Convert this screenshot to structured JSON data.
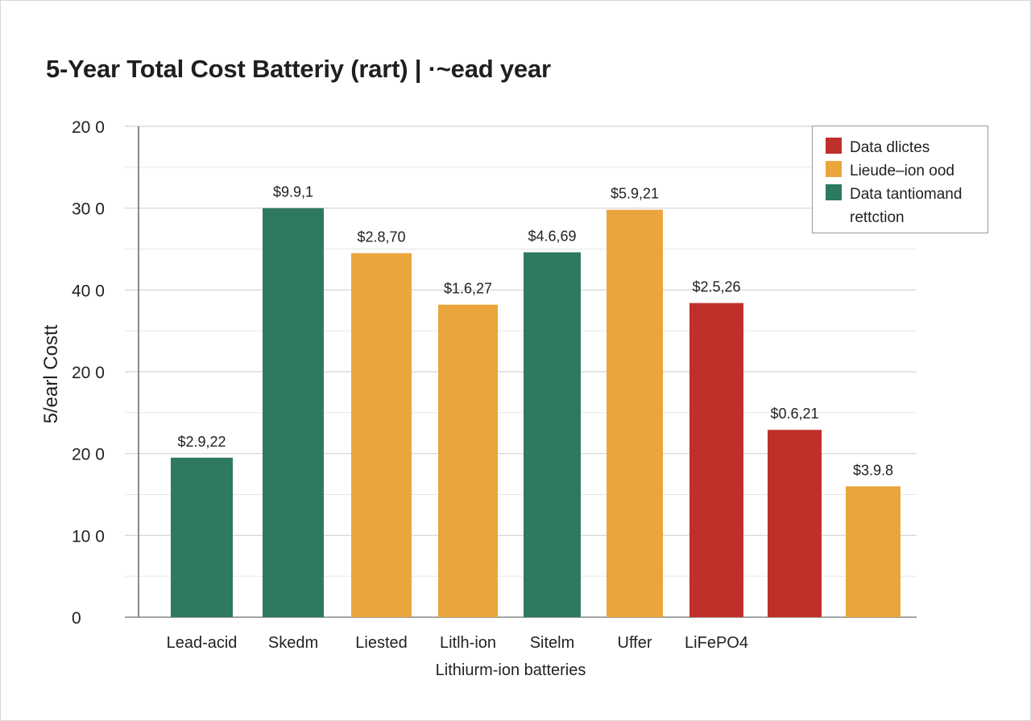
{
  "chart_data": {
    "type": "bar",
    "title": "5-Year Total Cost Batteriy (rart) | ·~ead year",
    "ylabel": "5/earl Costt",
    "xlabel": "Lithiurm-ion batteries",
    "y_tick_labels": [
      "0",
      "10 0",
      "20 0",
      "20 0",
      "40 0",
      "30 0",
      "20 0"
    ],
    "ylim": [
      0,
      6
    ],
    "grid": true,
    "legend_placement": "top-right",
    "legend": [
      {
        "label": "Data dlictes",
        "color": "#c0302a"
      },
      {
        "label": "Lieude–ion ood",
        "color": "#eba53d"
      },
      {
        "label": "Data tantiomand rettction",
        "color": "#2e7a5e"
      }
    ],
    "x_tick_labels": [
      {
        "label": "Lead-acid",
        "bar": 0
      },
      {
        "label": "Skedm",
        "bar": 1
      },
      {
        "label": "Liested",
        "bar": 2
      },
      {
        "label": "Litlh-ion",
        "bar": 3
      },
      {
        "label": "Sitelm",
        "bar": 4
      },
      {
        "label": "Uffer",
        "bar": 5
      },
      {
        "label": "LiFePO4",
        "bar": 6
      }
    ],
    "bars": [
      {
        "value": 1.95,
        "label": "$2.9,22",
        "color": "#2e7a5e"
      },
      {
        "value": 5.0,
        "label": "$9.9,1",
        "color": "#2e7a5e"
      },
      {
        "value": 4.45,
        "label": "$2.8,70",
        "color": "#eba53d"
      },
      {
        "value": 3.82,
        "label": "$1.6,27",
        "color": "#eba53d"
      },
      {
        "value": 4.46,
        "label": "$4.6,69",
        "color": "#2e7a5e"
      },
      {
        "value": 4.98,
        "label": "$5.9,21",
        "color": "#eba53d"
      },
      {
        "value": 3.84,
        "label": "$2.5,26",
        "color": "#c0302a"
      },
      {
        "value": 2.29,
        "label": "$0.6,21",
        "color": "#c0302a"
      },
      {
        "value": 1.6,
        "label": "$3.9.8",
        "color": "#eba53d"
      }
    ]
  }
}
